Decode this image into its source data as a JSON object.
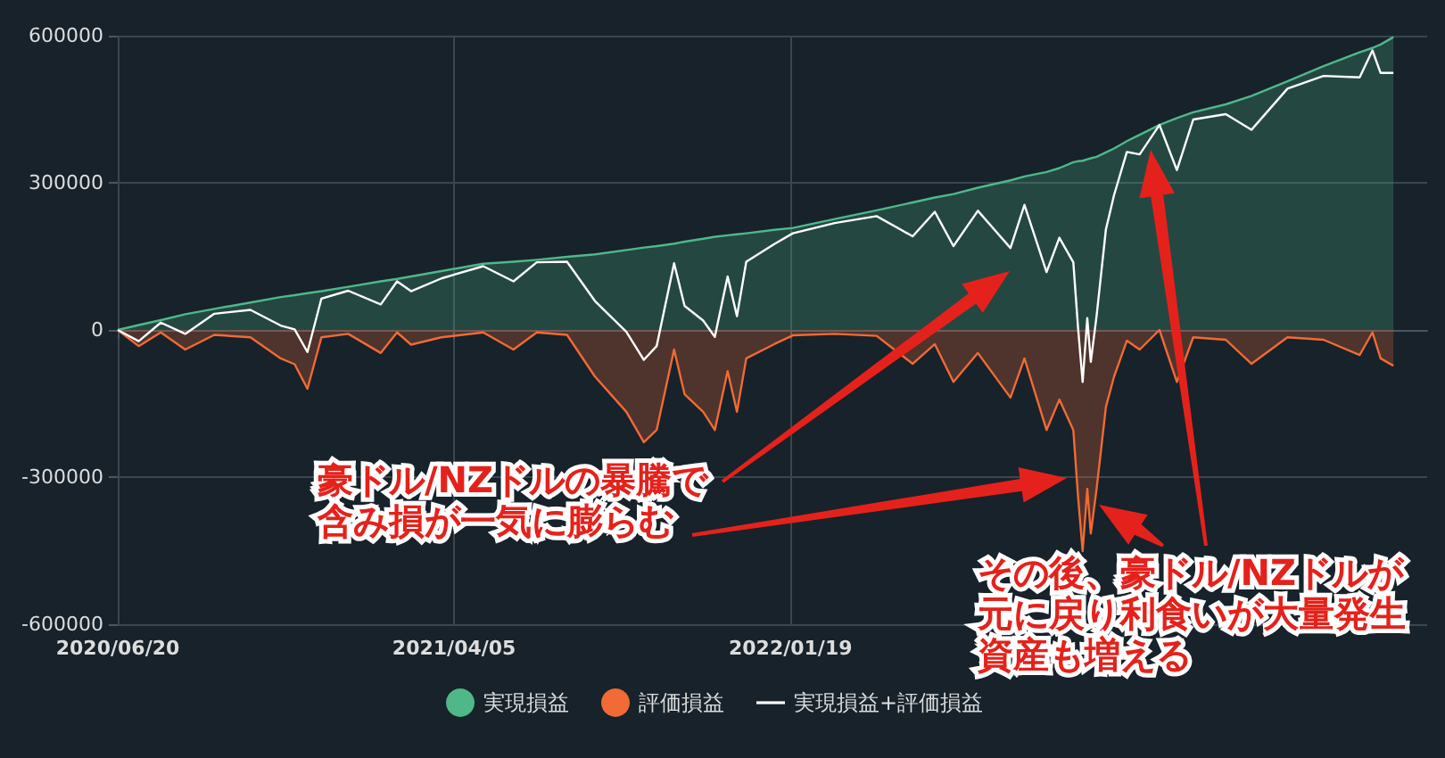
{
  "chart_data": {
    "type": "area",
    "x": [
      "2020-06-20",
      "2020-07-08",
      "2020-07-27",
      "2020-08-17",
      "2020-09-11",
      "2020-10-12",
      "2020-11-07",
      "2020-11-19",
      "2020-11-30",
      "2020-12-12",
      "2021-01-04",
      "2021-02-01",
      "2021-02-15",
      "2021-02-27",
      "2021-03-25",
      "2021-04-30",
      "2021-05-26",
      "2021-06-15",
      "2021-07-11",
      "2021-08-04",
      "2021-08-31",
      "2021-09-15",
      "2021-09-26",
      "2021-10-11",
      "2021-10-20",
      "2021-11-05",
      "2021-11-15",
      "2021-11-26",
      "2021-12-04",
      "2021-12-12",
      "2022-01-05",
      "2022-01-21",
      "2022-02-26",
      "2022-04-03",
      "2022-05-04",
      "2022-05-23",
      "2022-06-08",
      "2022-06-29",
      "2022-07-27",
      "2022-08-08",
      "2022-08-27",
      "2022-09-07",
      "2022-09-19",
      "2022-09-23",
      "2022-09-27",
      "2022-10-01",
      "2022-10-04",
      "2022-10-09",
      "2022-10-17",
      "2022-10-24",
      "2022-11-04",
      "2022-11-15",
      "2022-12-02",
      "2022-12-17",
      "2022-12-31",
      "2023-01-28",
      "2023-02-19",
      "2023-03-22",
      "2023-04-22",
      "2023-05-23",
      "2023-06-03",
      "2023-06-10",
      "2023-06-21"
    ],
    "series": [
      {
        "name": "実現損益",
        "color": "#4fb889",
        "values": [
          0,
          10000,
          20000,
          32000,
          43000,
          56000,
          67000,
          71000,
          75000,
          79000,
          88000,
          99000,
          104000,
          109000,
          120000,
          135000,
          139000,
          143000,
          149000,
          154000,
          163000,
          168000,
          171000,
          176000,
          180000,
          186000,
          190000,
          193000,
          195000,
          197000,
          204000,
          208000,
          226000,
          244000,
          260000,
          270000,
          277000,
          290000,
          305000,
          313000,
          322000,
          330000,
          342000,
          344000,
          345000,
          348000,
          350000,
          353000,
          362000,
          370000,
          385000,
          398000,
          418000,
          432000,
          444000,
          460000,
          477000,
          507000,
          538000,
          566000,
          575000,
          582000,
          597000
        ]
      },
      {
        "name": "評価損益",
        "color": "#f26a35",
        "values": [
          0,
          -33000,
          -5000,
          -40000,
          -10000,
          -15000,
          -58000,
          -70000,
          -120000,
          -15000,
          -8000,
          -47000,
          -5000,
          -30000,
          -15000,
          -5000,
          -40000,
          -5000,
          -10000,
          -95000,
          -167000,
          -229000,
          -204000,
          -40000,
          -131000,
          -167000,
          -204000,
          -84000,
          -167000,
          -58000,
          -29000,
          -11000,
          -8000,
          -12000,
          -69000,
          -29000,
          -106000,
          -47000,
          -138000,
          -58000,
          -204000,
          -142000,
          -204000,
          -338000,
          -451000,
          -324000,
          -415000,
          -324000,
          -157000,
          -95000,
          -22000,
          -40000,
          0,
          -106000,
          -15000,
          -20000,
          -69000,
          -15000,
          -20000,
          -51000,
          -5000,
          -58000,
          -73000
        ]
      },
      {
        "name": "実現損益+評価損益",
        "type": "line",
        "color": "#ffffff",
        "values": [
          0,
          -23000,
          15000,
          -8000,
          33000,
          41000,
          9000,
          1000,
          -45000,
          64000,
          80000,
          52000,
          99000,
          79000,
          105000,
          130000,
          99000,
          138000,
          139000,
          59000,
          -4000,
          -61000,
          -33000,
          136000,
          49000,
          19000,
          -14000,
          109000,
          28000,
          139000,
          175000,
          197000,
          218000,
          232000,
          191000,
          241000,
          171000,
          243000,
          167000,
          255000,
          118000,
          188000,
          138000,
          6000,
          -106000,
          24000,
          -65000,
          29000,
          205000,
          275000,
          363000,
          358000,
          418000,
          326000,
          429000,
          440000,
          408000,
          492000,
          518000,
          515000,
          570000,
          524000,
          524000
        ]
      }
    ],
    "xlim": [
      "2020-06-20",
      "2023-07-20"
    ],
    "xticks": [
      {
        "value": "2020-06-20",
        "label": "2020/06/20"
      },
      {
        "value": "2021-04-05",
        "label": "2021/04/05"
      },
      {
        "value": "2022-01-19",
        "label": "2022/01/19"
      }
    ],
    "ylim": [
      -600000,
      600000
    ],
    "yticks": [
      -600000,
      -300000,
      0,
      300000,
      600000
    ],
    "grid": true,
    "legend": "bottom",
    "marker": "none",
    "annotations": [
      "豪ドル/NZドルの暴騰で含み損が一気に膨らむ",
      "その後、豪ドル/NZドルが元に戻り利食いが大量発生資産も増える"
    ]
  }
}
